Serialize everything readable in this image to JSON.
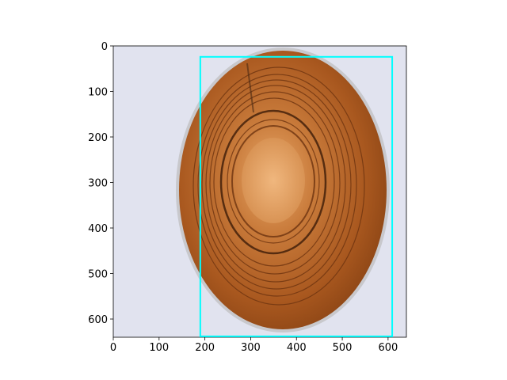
{
  "chart_data": {
    "type": "image",
    "xlim": [
      0,
      640
    ],
    "ylim": [
      640,
      0
    ],
    "xticks": [
      0,
      100,
      200,
      300,
      400,
      500,
      600
    ],
    "yticks": [
      0,
      100,
      200,
      300,
      400,
      500,
      600
    ],
    "boxes": [
      {
        "x": [
          190,
          609
        ],
        "y": [
          24,
          638
        ],
        "color": "#00ffff"
      }
    ]
  }
}
